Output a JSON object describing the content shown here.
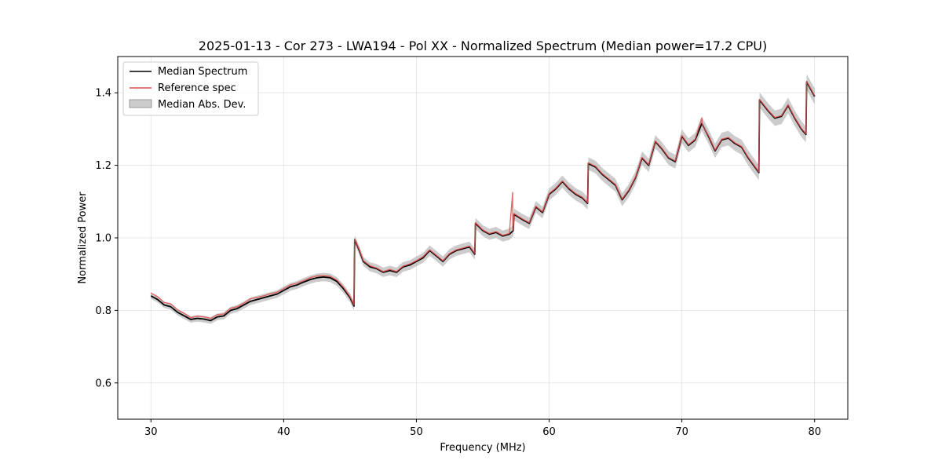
{
  "chart_data": {
    "type": "line",
    "title": "2025-01-13 - Cor 273 - LWA194 - Pol XX - Normalized Spectrum (Median power=17.2 CPU)",
    "xlabel": "Frequency (MHz)",
    "ylabel": "Normalized Power",
    "xlim": [
      27.5,
      82.5
    ],
    "ylim": [
      0.5,
      1.5
    ],
    "xticks": [
      30,
      40,
      50,
      60,
      70,
      80
    ],
    "yticks": [
      0.6,
      0.8,
      1.0,
      1.2,
      1.4
    ],
    "xtick_labels": [
      "30",
      "40",
      "50",
      "60",
      "70",
      "80"
    ],
    "ytick_labels": [
      "0.6",
      "0.8",
      "1.0",
      "1.2",
      "1.4"
    ],
    "grid": true,
    "legend_position": "top-left",
    "legend": [
      "Median Spectrum",
      "Reference spec",
      "Median Abs. Dev."
    ],
    "series": [
      {
        "name": "Median Spectrum",
        "color": "#000000",
        "x": [
          30.0,
          30.5,
          31.0,
          31.5,
          32.0,
          32.5,
          33.0,
          33.5,
          34.0,
          34.5,
          35.0,
          35.5,
          36.0,
          36.5,
          37.0,
          37.5,
          38.0,
          38.5,
          39.0,
          39.5,
          40.0,
          40.5,
          41.0,
          41.5,
          42.0,
          42.5,
          43.0,
          43.5,
          44.0,
          44.5,
          45.0,
          45.3,
          45.35,
          45.7,
          46.0,
          46.5,
          47.0,
          47.5,
          48.0,
          48.5,
          49.0,
          49.5,
          50.0,
          50.5,
          51.0,
          51.5,
          52.0,
          52.5,
          53.0,
          53.5,
          54.0,
          54.4,
          54.45,
          55.0,
          55.5,
          56.0,
          56.5,
          57.0,
          57.3,
          57.35,
          58.0,
          58.5,
          59.0,
          59.5,
          60.0,
          60.5,
          61.0,
          61.5,
          62.0,
          62.5,
          62.9,
          62.95,
          63.5,
          64.0,
          64.5,
          65.0,
          65.5,
          66.0,
          66.5,
          67.0,
          67.5,
          68.0,
          68.5,
          69.0,
          69.5,
          70.0,
          70.5,
          71.0,
          71.5,
          72.0,
          72.5,
          73.0,
          73.5,
          74.0,
          74.5,
          75.0,
          75.8,
          75.85,
          76.5,
          77.0,
          77.5,
          78.0,
          78.5,
          79.0,
          79.35,
          79.4,
          80.0
        ],
        "values": [
          0.84,
          0.83,
          0.815,
          0.81,
          0.795,
          0.785,
          0.775,
          0.778,
          0.776,
          0.772,
          0.782,
          0.785,
          0.8,
          0.805,
          0.815,
          0.825,
          0.83,
          0.835,
          0.84,
          0.845,
          0.855,
          0.865,
          0.87,
          0.878,
          0.885,
          0.89,
          0.892,
          0.89,
          0.88,
          0.86,
          0.835,
          0.812,
          0.995,
          0.965,
          0.935,
          0.92,
          0.915,
          0.905,
          0.91,
          0.905,
          0.92,
          0.925,
          0.935,
          0.945,
          0.965,
          0.95,
          0.935,
          0.955,
          0.965,
          0.97,
          0.975,
          0.955,
          1.04,
          1.02,
          1.01,
          1.015,
          1.005,
          1.01,
          1.02,
          1.065,
          1.05,
          1.04,
          1.085,
          1.07,
          1.12,
          1.135,
          1.155,
          1.135,
          1.12,
          1.11,
          1.095,
          1.205,
          1.195,
          1.175,
          1.16,
          1.145,
          1.105,
          1.13,
          1.165,
          1.22,
          1.2,
          1.265,
          1.245,
          1.22,
          1.21,
          1.28,
          1.255,
          1.27,
          1.315,
          1.28,
          1.24,
          1.27,
          1.275,
          1.26,
          1.25,
          1.22,
          1.18,
          1.38,
          1.35,
          1.33,
          1.335,
          1.365,
          1.33,
          1.3,
          1.285,
          1.43,
          1.39
        ]
      },
      {
        "name": "Reference spec",
        "color": "#e05050",
        "x": [
          30.0,
          30.5,
          31.0,
          31.5,
          32.0,
          32.5,
          33.0,
          33.5,
          34.0,
          34.5,
          35.0,
          35.5,
          36.0,
          36.5,
          37.0,
          37.5,
          38.0,
          38.5,
          39.0,
          39.5,
          40.0,
          40.5,
          41.0,
          41.5,
          42.0,
          42.5,
          43.0,
          43.5,
          44.0,
          44.5,
          45.0,
          45.3,
          45.35,
          45.7,
          46.0,
          46.5,
          47.0,
          47.5,
          48.0,
          48.5,
          49.0,
          49.5,
          50.0,
          50.5,
          51.0,
          51.5,
          52.0,
          52.5,
          53.0,
          53.5,
          54.0,
          54.4,
          54.45,
          55.0,
          55.5,
          56.0,
          56.5,
          57.0,
          57.25,
          57.26,
          57.3,
          57.35,
          58.0,
          58.5,
          59.0,
          59.5,
          60.0,
          60.5,
          61.0,
          61.5,
          62.0,
          62.5,
          62.9,
          62.95,
          63.5,
          64.0,
          64.5,
          65.0,
          65.5,
          66.0,
          66.5,
          67.0,
          67.5,
          68.0,
          68.5,
          69.0,
          69.5,
          70.0,
          70.5,
          71.0,
          71.5,
          71.55,
          72.0,
          72.5,
          73.0,
          73.5,
          74.0,
          74.5,
          75.0,
          75.8,
          75.85,
          76.5,
          77.0,
          77.5,
          78.0,
          78.5,
          79.0,
          79.35,
          79.4,
          80.0
        ],
        "values": [
          0.848,
          0.838,
          0.822,
          0.818,
          0.802,
          0.792,
          0.78,
          0.784,
          0.782,
          0.778,
          0.788,
          0.79,
          0.806,
          0.81,
          0.82,
          0.832,
          0.836,
          0.84,
          0.846,
          0.85,
          0.86,
          0.87,
          0.875,
          0.882,
          0.89,
          0.895,
          0.896,
          0.894,
          0.884,
          0.864,
          0.838,
          0.815,
          0.997,
          0.967,
          0.937,
          0.923,
          0.917,
          0.907,
          0.913,
          0.907,
          0.922,
          0.928,
          0.937,
          0.948,
          0.967,
          0.952,
          0.937,
          0.957,
          0.967,
          0.972,
          0.977,
          0.957,
          1.042,
          1.022,
          1.012,
          1.017,
          1.007,
          1.012,
          1.125,
          1.02,
          1.022,
          1.067,
          1.052,
          1.042,
          1.087,
          1.072,
          1.122,
          1.137,
          1.157,
          1.137,
          1.122,
          1.112,
          1.097,
          1.207,
          1.197,
          1.177,
          1.162,
          1.147,
          1.107,
          1.132,
          1.167,
          1.222,
          1.202,
          1.267,
          1.247,
          1.222,
          1.212,
          1.282,
          1.257,
          1.272,
          1.33,
          1.31,
          1.282,
          1.242,
          1.272,
          1.277,
          1.262,
          1.252,
          1.222,
          1.182,
          1.382,
          1.352,
          1.332,
          1.337,
          1.367,
          1.332,
          1.302,
          1.287,
          1.432,
          1.392
        ]
      }
    ],
    "band": {
      "name": "Median Abs. Dev.",
      "color": "#999999",
      "halfwidth_start": 0.008,
      "halfwidth_end": 0.022
    }
  }
}
